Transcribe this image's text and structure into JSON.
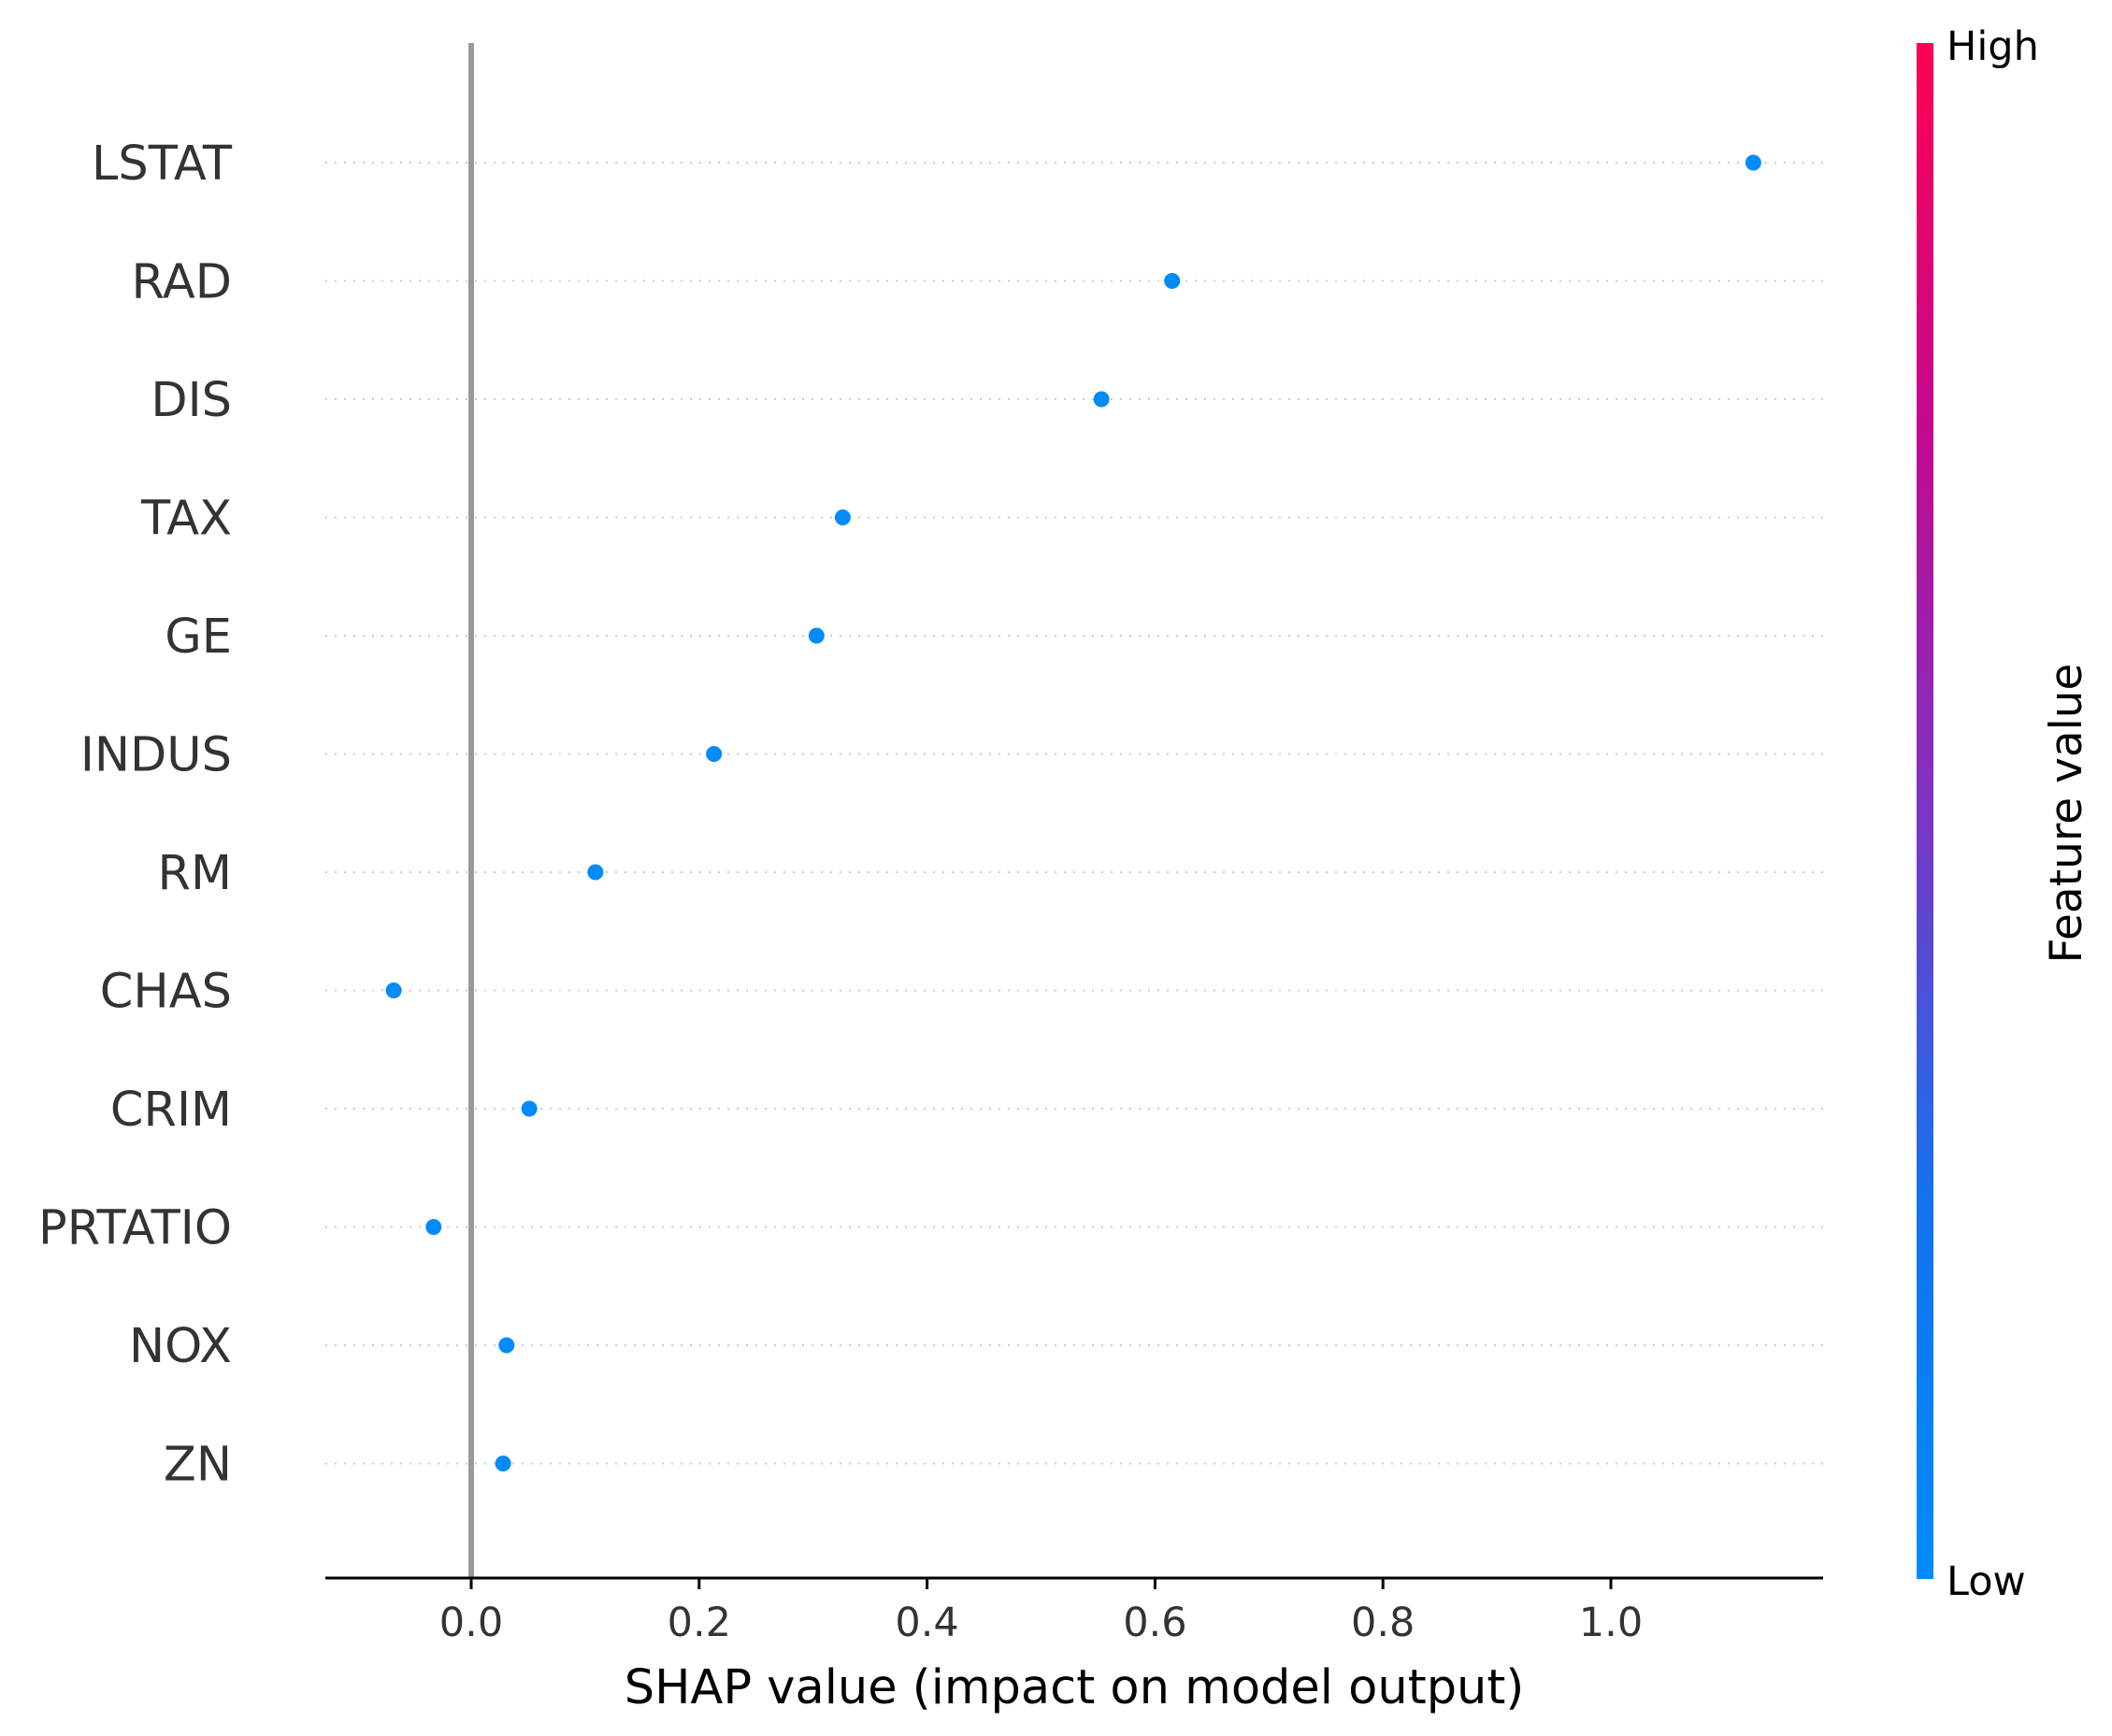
{
  "chart_data": {
    "type": "scatter",
    "xlabel": "SHAP value (impact on model output)",
    "xlim": [
      -0.13,
      1.18
    ],
    "xticks": [
      0.0,
      0.2,
      0.4,
      0.6,
      0.8,
      1.0
    ],
    "xtick_labels": [
      "0.0",
      "0.2",
      "0.4",
      "0.6",
      "0.8",
      "1.0"
    ],
    "zero_line": true,
    "row_grid": "dotted",
    "features": [
      "LSTAT",
      "RAD",
      "DIS",
      "TAX",
      "GE",
      "INDUS",
      "RM",
      "CHAS",
      "CRIM",
      "PRTATIO",
      "NOX",
      "ZN"
    ],
    "values": [
      1.125,
      0.615,
      0.553,
      0.326,
      0.303,
      0.213,
      0.109,
      -0.068,
      0.051,
      -0.033,
      0.031,
      0.028
    ],
    "point_color": "#008bfb",
    "colorbar": {
      "title": "Feature value",
      "high_label": "High",
      "low_label": "Low",
      "high_color": "#ff0052",
      "mid_color": "#7c34c4",
      "low_color": "#008bfb"
    }
  }
}
